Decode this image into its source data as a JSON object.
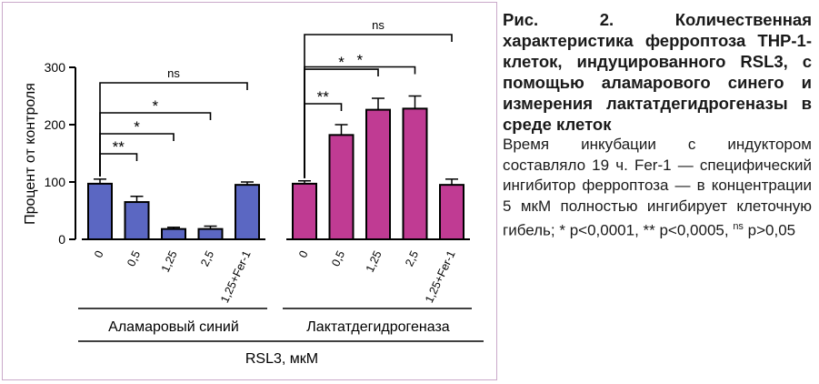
{
  "chart_data": {
    "type": "bar",
    "ylabel": "Процент от контроля",
    "ylim": [
      0,
      300
    ],
    "yticks": [
      0,
      100,
      200,
      300
    ],
    "xlabel": "RSL3, мкМ",
    "categories": [
      "0",
      "0,5",
      "1,25",
      "2,5",
      "1,25+Fer-1"
    ],
    "groups": [
      {
        "name": "Аламаровый синий",
        "color": "#5b67c2",
        "values": [
          97,
          65,
          18,
          18,
          95
        ],
        "errors": [
          8,
          10,
          3,
          5,
          5
        ],
        "comparisons": [
          {
            "to": 1,
            "label": "**"
          },
          {
            "to": 2,
            "label": "*"
          },
          {
            "to": 3,
            "label": "*"
          },
          {
            "to": 4,
            "label": "ns"
          }
        ]
      },
      {
        "name": "Лактатдегидрогеназа",
        "color": "#c03b93",
        "values": [
          97,
          182,
          226,
          228,
          95
        ],
        "errors": [
          5,
          18,
          20,
          22,
          10
        ],
        "comparisons": [
          {
            "to": 1,
            "label": "**"
          },
          {
            "to": 2,
            "label": "*"
          },
          {
            "to": 3,
            "label": "*"
          },
          {
            "to": 4,
            "label": "ns"
          }
        ]
      }
    ]
  },
  "caption": {
    "title": "Рис. 2. Количественная характеристика ферроптоза ТНР-1-клеток, индуцированного RSL3, с помощью аламарового синего и измерения лактатдегидрогеназы в среде клеток",
    "body_main": "Время инкубации с индуктором составляло 19 ч. Fer-1 — специфический ингибитор ферроптоза — в концентрации 5 мкМ полностью ингибирует клеточную гибель; * p<0,0001, ** p<0,0005, ",
    "body_ns": "ns",
    "body_tail": " p>0,05"
  }
}
